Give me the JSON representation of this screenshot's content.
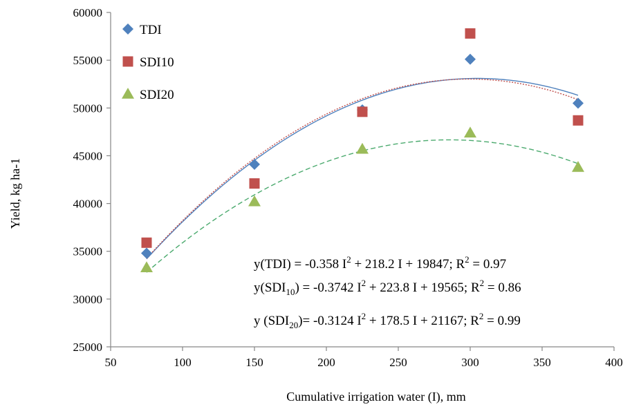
{
  "chart_data": {
    "type": "scatter",
    "xlabel": "Cumulative irrigation water (I), mm",
    "ylabel": "Yield, kg ha-1",
    "xlim": [
      50,
      400
    ],
    "ylim": [
      25000,
      60000
    ],
    "xticks": [
      50,
      100,
      150,
      200,
      250,
      300,
      350,
      400
    ],
    "yticks": [
      25000,
      30000,
      35000,
      40000,
      45000,
      50000,
      55000,
      60000
    ],
    "grid": false,
    "legend_position": "top-left",
    "series": [
      {
        "name": "TDI",
        "marker": "diamond",
        "color": "#4F81BD",
        "x": [
          75,
          150,
          225,
          300,
          375
        ],
        "values": [
          34800,
          44100,
          49800,
          55100,
          50500
        ],
        "trend": {
          "a": -0.358,
          "b": 218.2,
          "c": 19847,
          "style": "solid",
          "color": "#4F81BD"
        }
      },
      {
        "name": "SDI10",
        "marker": "square",
        "color": "#C0504D",
        "x": [
          75,
          150,
          225,
          300,
          375
        ],
        "values": [
          35900,
          42100,
          49600,
          57800,
          48700
        ],
        "trend": {
          "a": -0.3742,
          "b": 223.8,
          "c": 19565,
          "style": "dotted",
          "color": "#C0504D"
        }
      },
      {
        "name": "SDI20",
        "marker": "triangle",
        "color": "#9BBB59",
        "x": [
          75,
          150,
          225,
          300,
          375
        ],
        "values": [
          33300,
          40200,
          45700,
          47400,
          43800
        ],
        "trend": {
          "a": -0.3124,
          "b": 178.5,
          "c": 21167,
          "style": "dashed",
          "color": "#4BAA6E"
        }
      }
    ],
    "annotations": [
      {
        "prefix": "y(TDI) = -0.358 I",
        "sub": "",
        "mid": "",
        "sup": "2",
        "rest": " + 218.2 I + 19847; R",
        "sup2": "2",
        "tail": " = 0.97"
      },
      {
        "prefix": "y(SDI",
        "sub": "10",
        "mid": ") = -0.3742 I",
        "sup": "2",
        "rest": " + 223.8 I + 19565; R",
        "sup2": "2",
        "tail": " = 0.86"
      },
      {
        "prefix": "y (SDI",
        "sub": "20",
        "mid": ")= -0.3124 I",
        "sup": "2",
        "rest": " + 178.5 I + 21167; R",
        "sup2": "2",
        "tail": " = 0.99"
      }
    ]
  }
}
